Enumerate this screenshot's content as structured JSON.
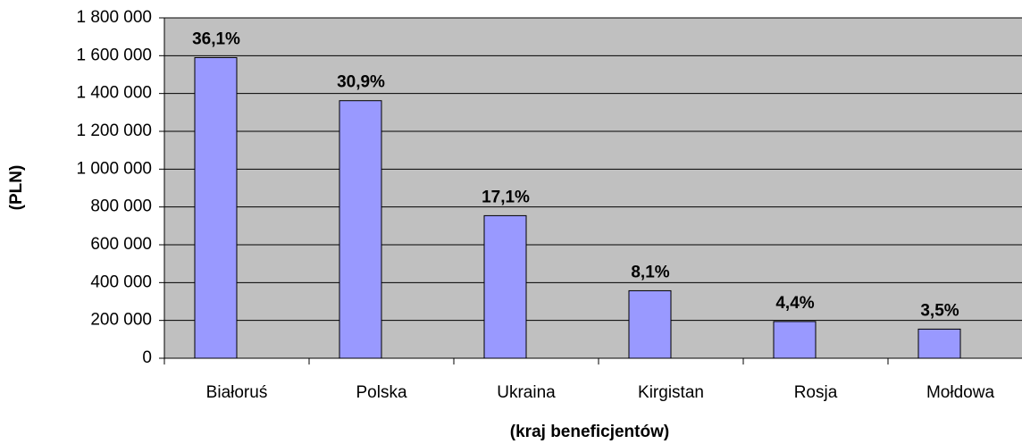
{
  "chart_data": {
    "type": "bar",
    "x_label": "(kraj beneficjentów)",
    "y_label": "(PLN)",
    "categories": [
      "Białoruś",
      "Polska",
      "Ukraina",
      "Kirgistan",
      "Rosja",
      "Mołdowa"
    ],
    "values": [
      1590000,
      1362000,
      754000,
      357000,
      194000,
      154000
    ],
    "shares": [
      {
        "value": 36.1,
        "label": "36,1%"
      },
      {
        "value": 30.9,
        "label": "30,9%"
      },
      {
        "value": 17.1,
        "label": "17,1%"
      },
      {
        "value": 8.1,
        "label": "8,1%"
      },
      {
        "value": 4.4,
        "label": "4,4%"
      },
      {
        "value": 3.5,
        "label": "3,5%"
      }
    ],
    "color": "#9999ff",
    "ylim": [
      0,
      1800000
    ],
    "yticks": [
      0,
      {
        "value": 200000,
        "label": "200 000"
      },
      {
        "value": 400000,
        "label": "400 000"
      },
      {
        "value": 600000,
        "label": "600 000"
      },
      {
        "value": 800000,
        "label": "800 000"
      },
      {
        "value": 1000000,
        "label": "1 000 000"
      },
      {
        "value": 1200000,
        "label": "1 200 000"
      },
      {
        "value": 1400000,
        "label": "1 400 000"
      },
      {
        "value": 1600000,
        "label": "1 600 000"
      },
      {
        "value": 1800000,
        "label": "1 800 000"
      }
    ],
    "grid": true
  }
}
